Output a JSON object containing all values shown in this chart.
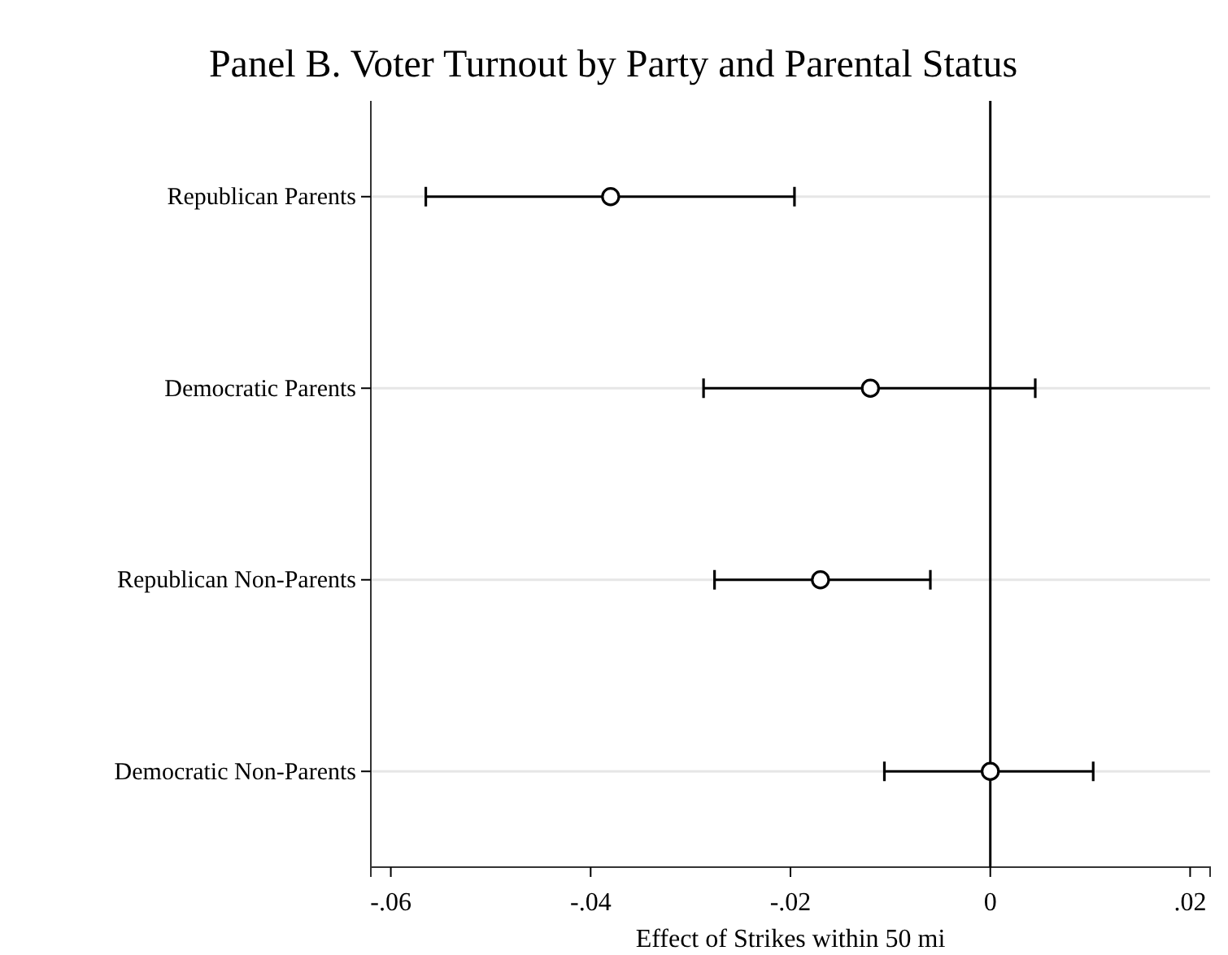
{
  "chart_data": {
    "type": "scatter",
    "orientation": "horizontal",
    "title": "Panel B. Voter Turnout by Party and Parental Status",
    "xlabel": "Effect of Strikes within 50 mi",
    "categories": [
      "Republican Parents",
      "Democratic Parents",
      "Republican Non-Parents",
      "Democratic Non-Parents"
    ],
    "values": [
      -0.038,
      -0.012,
      -0.017,
      0.0
    ],
    "errors": [
      [
        -0.0565,
        -0.0196
      ],
      [
        -0.0287,
        0.0045
      ],
      [
        -0.0276,
        -0.006
      ],
      [
        -0.0106,
        0.0103
      ]
    ],
    "color": "#000000",
    "marker": "circle",
    "grid": "y",
    "xlim": [
      -0.062,
      0.022
    ],
    "xticks": [
      {
        "value": -0.06,
        "label": "-.06"
      },
      {
        "value": -0.04,
        "label": "-.04"
      },
      {
        "value": -0.02,
        "label": "-.02"
      },
      0,
      {
        "value": 0.02,
        "label": ".02"
      }
    ],
    "ref_lines": [
      {
        "axis": "x",
        "value": 0,
        "color": "#000000"
      }
    ]
  }
}
